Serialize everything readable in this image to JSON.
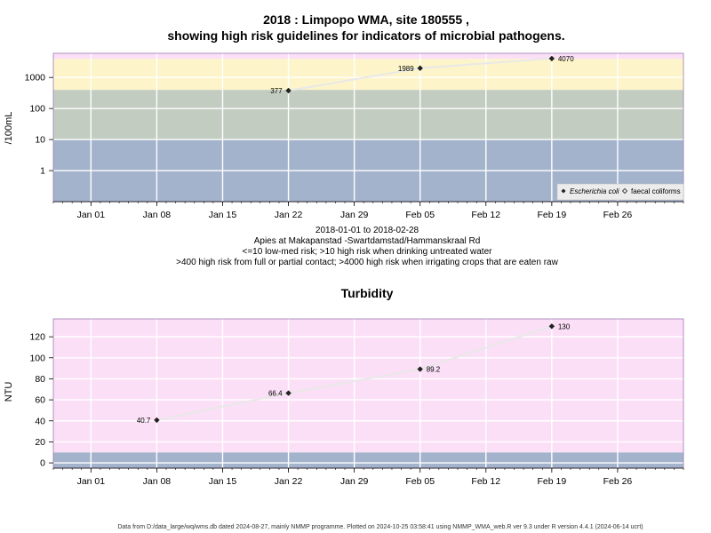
{
  "footer": "Data from D:/data_large/wq/wms.db dated 2024-08-27, mainly NMMP programme. Plotted on 2024-10-25 03:58:41 using NMMP_WMA_web.R ver 9.3 under R version 4.4.1 (2024-06-14 ucrt)",
  "chart_data": [
    {
      "type": "line",
      "title_line1": "2018 : Limpopo WMA, site 180555 ,",
      "title_line2": "showing high risk guidelines for indicators of microbial pathogens.",
      "ylabel": "/100mL",
      "xlabel": "",
      "y_scale": "log",
      "ylim": [
        0.1,
        6000
      ],
      "xlim": [
        "2017-12-28",
        "2018-03-05"
      ],
      "y_ticks": [
        1,
        10,
        100,
        1000
      ],
      "y_tick_labels": [
        "1",
        "10",
        "100",
        "1000"
      ],
      "x_ticks": [
        "2018-01-01",
        "2018-01-08",
        "2018-01-15",
        "2018-01-22",
        "2018-01-29",
        "2018-02-05",
        "2018-02-12",
        "2018-02-19",
        "2018-02-26"
      ],
      "x_tick_labels": [
        "Jan 01",
        "Jan 08",
        "Jan 15",
        "Jan 22",
        "Jan 29",
        "Feb 05",
        "Feb 12",
        "Feb 19",
        "Feb 26"
      ],
      "grid": true,
      "bands": [
        {
          "from": 0.1,
          "to": 10,
          "color": "#a3b3cc"
        },
        {
          "from": 10,
          "to": 400,
          "color": "#c3ccc1"
        },
        {
          "from": 400,
          "to": 4000,
          "color": "#fdf5c9"
        },
        {
          "from": 4000,
          "to": 6000,
          "color": "#fbdff6"
        }
      ],
      "series": [
        {
          "name": "Escherichia coli",
          "x": [
            "2018-01-22",
            "2018-02-05",
            "2018-02-19"
          ],
          "y": [
            377,
            1989,
            4070
          ],
          "labels": [
            "377",
            "1989",
            "4070"
          ]
        }
      ],
      "legend": {
        "position": "bottom-right",
        "entries": [
          {
            "label": "Escherichia coli",
            "marker": "filled-diamond"
          },
          {
            "label": "faecal coliforms",
            "marker": "open-diamond"
          }
        ]
      },
      "notes": [
        "2018-01-01 to 2018-02-28",
        "Apies at Makapanstad -Swartdamstad/Hammanskraal Rd",
        "<=10 low-med risk; >10 high risk when drinking untreated water",
        ">400 high risk from full or partial contact; >4000 high risk when irrigating crops that are eaten raw"
      ]
    },
    {
      "type": "line",
      "title": "Turbidity",
      "ylabel": "NTU",
      "xlabel": "",
      "ylim": [
        -5,
        137
      ],
      "xlim": [
        "2017-12-28",
        "2018-03-05"
      ],
      "y_ticks": [
        0,
        20,
        40,
        60,
        80,
        100,
        120
      ],
      "y_tick_labels": [
        "0",
        "20",
        "40",
        "60",
        "80",
        "100",
        "120"
      ],
      "x_ticks": [
        "2018-01-01",
        "2018-01-08",
        "2018-01-15",
        "2018-01-22",
        "2018-01-29",
        "2018-02-05",
        "2018-02-12",
        "2018-02-19",
        "2018-02-26"
      ],
      "x_tick_labels": [
        "Jan 01",
        "Jan 08",
        "Jan 15",
        "Jan 22",
        "Jan 29",
        "Feb 05",
        "Feb 12",
        "Feb 19",
        "Feb 26"
      ],
      "grid": true,
      "bands": [
        {
          "from": -5,
          "to": 10,
          "color": "#a3b3cc"
        },
        {
          "from": 10,
          "to": 137,
          "color": "#fbdff6"
        }
      ],
      "series": [
        {
          "x": [
            "2018-01-08",
            "2018-01-22",
            "2018-02-05",
            "2018-02-19"
          ],
          "y": [
            40.7,
            66.4,
            89.2,
            130
          ],
          "labels": [
            "40.7",
            "66.4",
            "89.2",
            "130"
          ]
        }
      ]
    }
  ]
}
